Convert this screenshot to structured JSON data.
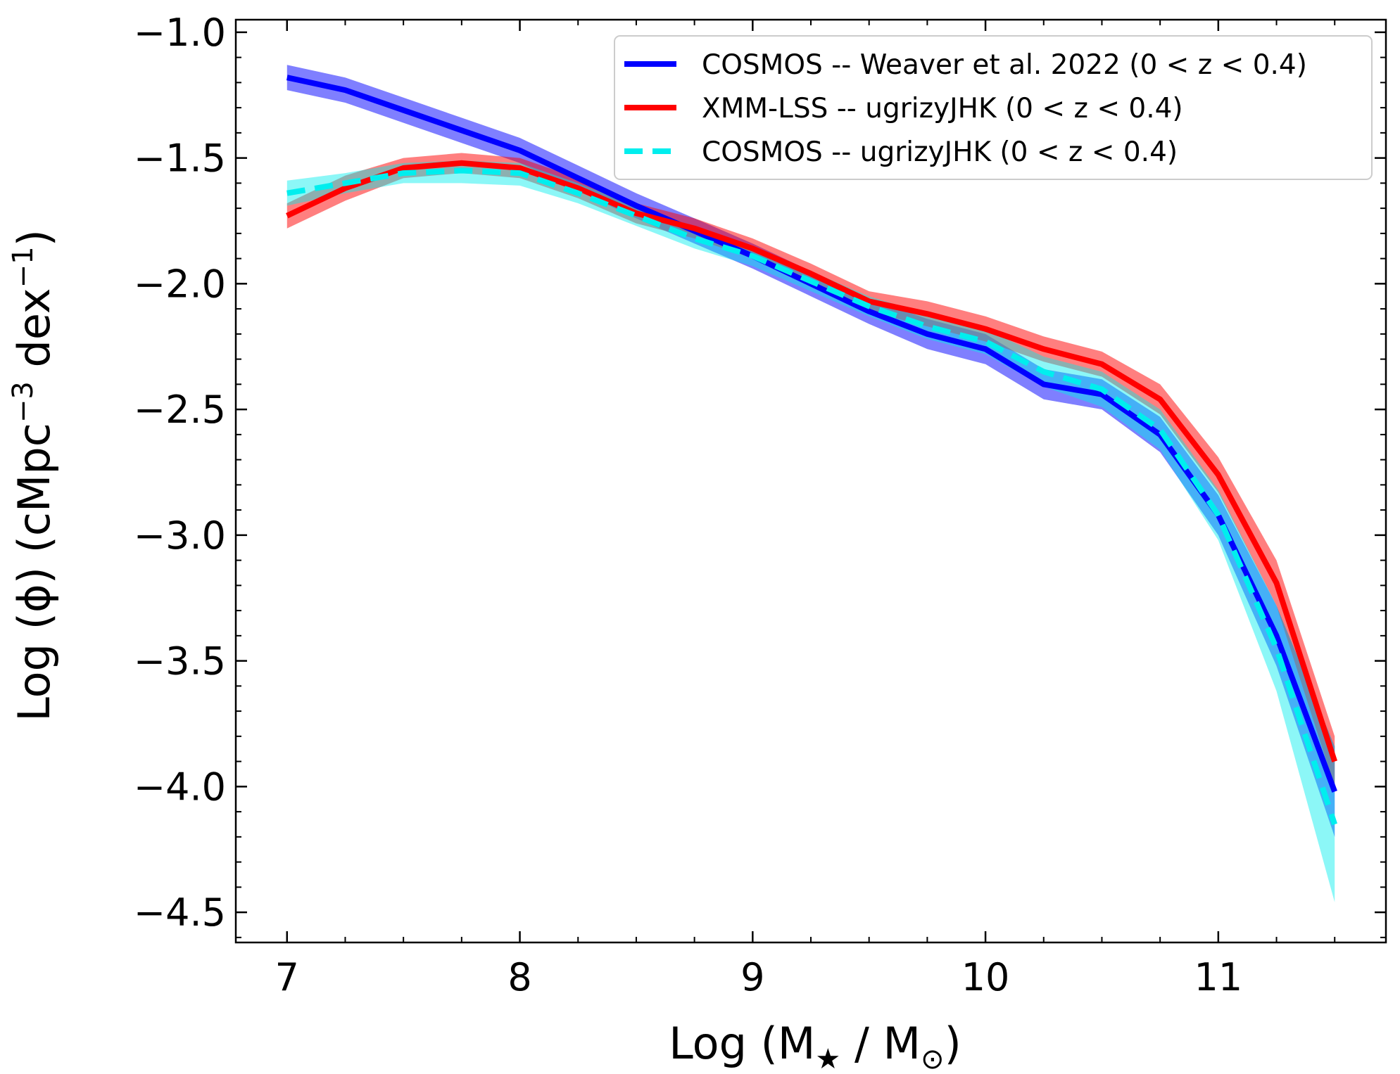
{
  "chart_data": {
    "type": "line",
    "title": "",
    "xlabel": "Log (M",
    "xlabel_sub": "★",
    "xlabel_mid": " / M",
    "xlabel_sub2": "⊙",
    "xlabel_end": ")",
    "ylabel": "Log (ϕ)  (cMpc",
    "ylabel_sup": "−3",
    "ylabel_mid": " dex",
    "ylabel_sup2": "−1",
    "ylabel_end": ")",
    "xlim": [
      6.78,
      11.72
    ],
    "ylim": [
      -4.62,
      -0.95
    ],
    "xticks": [
      7,
      8,
      9,
      10,
      11
    ],
    "xtick_labels": [
      "7",
      "8",
      "9",
      "10",
      "11"
    ],
    "yticks": [
      -1.0,
      -1.5,
      -2.0,
      -2.5,
      -3.0,
      -3.5,
      -4.0,
      -4.5
    ],
    "ytick_labels": [
      "−1.0",
      "−1.5",
      "−2.0",
      "−2.5",
      "−3.0",
      "−3.5",
      "−4.0",
      "−4.5"
    ],
    "grid": false,
    "legend_position": "top-right",
    "x": [
      7.0,
      7.25,
      7.5,
      7.75,
      8.0,
      8.25,
      8.5,
      8.75,
      9.0,
      9.25,
      9.5,
      9.75,
      10.0,
      10.25,
      10.5,
      10.75,
      11.0,
      11.25,
      11.5
    ],
    "series": [
      {
        "name": "COSMOS -- Weaver et al. 2022 (0 < z < 0.4)",
        "color": "#0000ff",
        "dash": "solid",
        "values": [
          -1.18,
          -1.23,
          -1.31,
          -1.39,
          -1.47,
          -1.58,
          -1.69,
          -1.79,
          -1.89,
          -2.0,
          -2.11,
          -2.2,
          -2.26,
          -2.4,
          -2.44,
          -2.6,
          -2.92,
          -3.4,
          -4.02
        ],
        "band_low": [
          -1.23,
          -1.28,
          -1.36,
          -1.44,
          -1.52,
          -1.63,
          -1.74,
          -1.84,
          -1.94,
          -2.05,
          -2.16,
          -2.26,
          -2.32,
          -2.46,
          -2.5,
          -2.67,
          -3.0,
          -3.52,
          -4.2
        ],
        "band_high": [
          -1.13,
          -1.18,
          -1.26,
          -1.34,
          -1.42,
          -1.53,
          -1.64,
          -1.74,
          -1.84,
          -1.95,
          -2.06,
          -2.14,
          -2.2,
          -2.34,
          -2.38,
          -2.53,
          -2.84,
          -3.28,
          -3.84
        ]
      },
      {
        "name": "XMM-LSS -- ugrizyJHK (0 < z < 0.4)",
        "color": "#ff0000",
        "dash": "solid",
        "values": [
          -1.73,
          -1.62,
          -1.54,
          -1.52,
          -1.54,
          -1.62,
          -1.72,
          -1.78,
          -1.86,
          -1.96,
          -2.07,
          -2.12,
          -2.18,
          -2.26,
          -2.32,
          -2.46,
          -2.76,
          -3.19,
          -3.9
        ],
        "band_low": [
          -1.78,
          -1.67,
          -1.58,
          -1.56,
          -1.58,
          -1.66,
          -1.76,
          -1.82,
          -1.9,
          -2.0,
          -2.11,
          -2.17,
          -2.23,
          -2.31,
          -2.37,
          -2.52,
          -2.83,
          -3.28,
          -4.0
        ],
        "band_high": [
          -1.68,
          -1.57,
          -1.5,
          -1.48,
          -1.5,
          -1.58,
          -1.68,
          -1.74,
          -1.82,
          -1.92,
          -2.03,
          -2.07,
          -2.13,
          -2.21,
          -2.27,
          -2.4,
          -2.69,
          -3.1,
          -3.8
        ]
      },
      {
        "name": "COSMOS -- ugrizyJHK (0 < z < 0.4)",
        "color": "#00eeee",
        "dash": "dashed",
        "values": [
          -1.64,
          -1.6,
          -1.56,
          -1.55,
          -1.56,
          -1.64,
          -1.73,
          -1.82,
          -1.89,
          -1.99,
          -2.09,
          -2.17,
          -2.23,
          -2.35,
          -2.42,
          -2.58,
          -2.92,
          -3.45,
          -4.15
        ],
        "band_low": [
          -1.69,
          -1.64,
          -1.6,
          -1.6,
          -1.61,
          -1.68,
          -1.77,
          -1.86,
          -1.93,
          -2.03,
          -2.13,
          -2.22,
          -2.28,
          -2.41,
          -2.49,
          -2.66,
          -3.02,
          -3.62,
          -4.46
        ],
        "band_high": [
          -1.59,
          -1.56,
          -1.52,
          -1.51,
          -1.52,
          -1.6,
          -1.69,
          -1.78,
          -1.85,
          -1.95,
          -2.05,
          -2.12,
          -2.18,
          -2.29,
          -2.35,
          -2.5,
          -2.82,
          -3.28,
          -3.84
        ]
      }
    ]
  }
}
